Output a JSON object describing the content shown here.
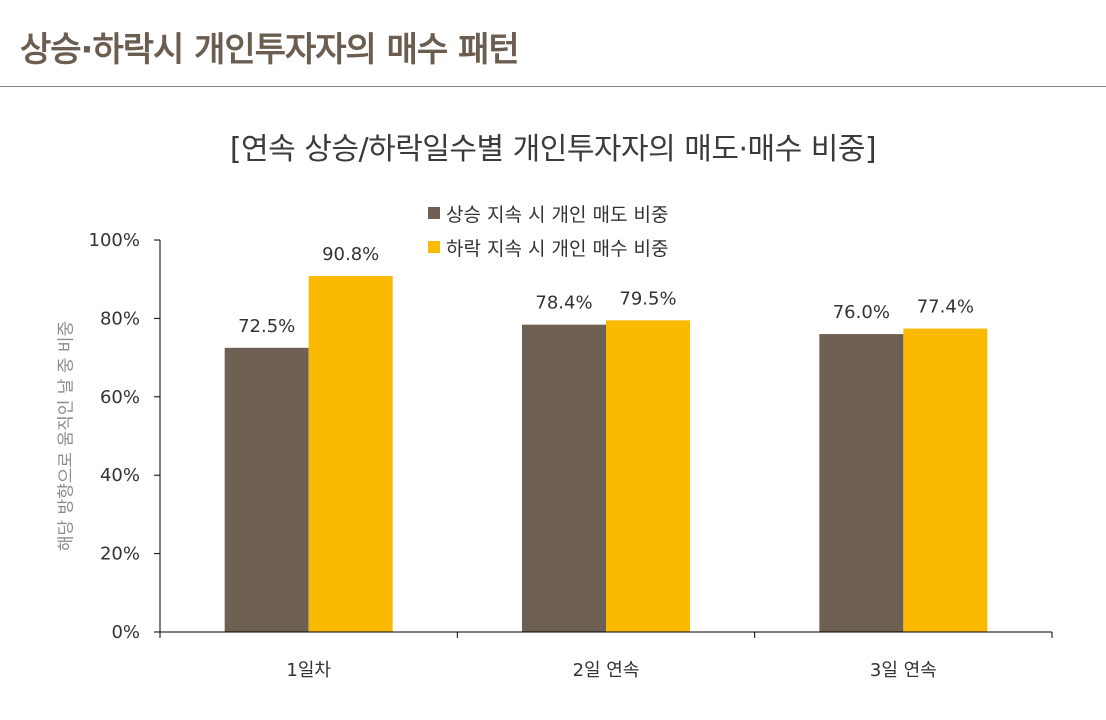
{
  "page": {
    "title": "상승·하락시 개인투자자의 매수 패턴"
  },
  "chart_data": {
    "type": "bar",
    "title": "[연속 상승/하락일수별 개인투자자의 매도·매수 비중]",
    "xlabel": "",
    "ylabel": "해당 방향으로 움직인 날 중 비중",
    "categories": [
      "1일차",
      "2일 연속",
      "3일 연속"
    ],
    "series": [
      {
        "name": "상승 지속 시 개인 매도 비중",
        "color": "#6e6052",
        "values": [
          72.5,
          78.4,
          76.0
        ],
        "labels": [
          "72.5%",
          "78.4%",
          "76.0%"
        ]
      },
      {
        "name": "하락 지속 시 개인 매수 비중",
        "color": "#fbb900",
        "values": [
          90.8,
          79.5,
          77.4
        ],
        "labels": [
          "90.8%",
          "79.5%",
          "77.4%"
        ]
      }
    ],
    "ylim": [
      0,
      100
    ],
    "yticks": [
      0,
      20,
      40,
      60,
      80,
      100
    ],
    "ytick_labels": [
      "0%",
      "20%",
      "40%",
      "60%",
      "80%",
      "100%"
    ],
    "grid": false,
    "legend_position": "top-center"
  }
}
